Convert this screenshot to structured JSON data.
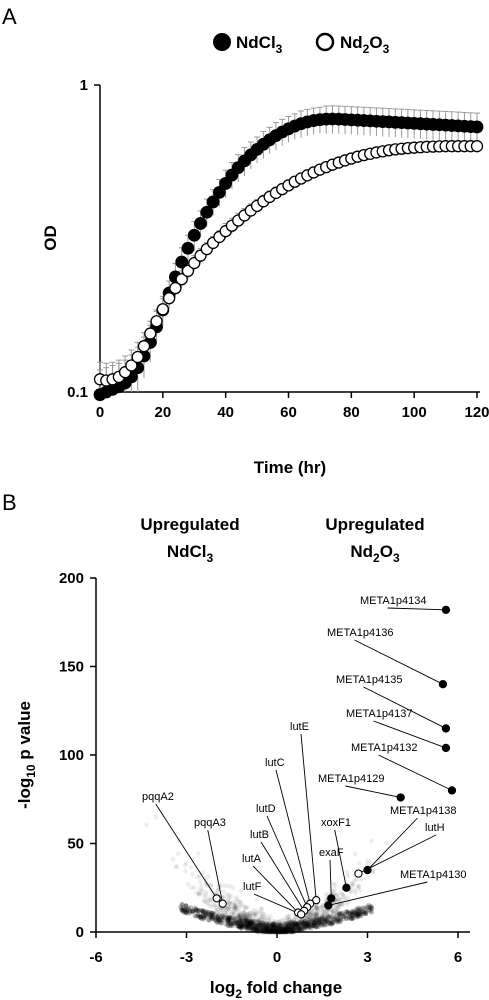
{
  "chart_data": [
    {
      "panel": "A",
      "type": "scatter",
      "xlabel": "Time (hr)",
      "ylabel": "OD",
      "xlim": [
        0,
        120
      ],
      "ylim": [
        0.1,
        1
      ],
      "yscale": "log",
      "x_ticks": [
        "0",
        "20",
        "40",
        "60",
        "80",
        "100",
        "120"
      ],
      "y_ticks": [
        "1",
        "0.1"
      ],
      "legend_position": "top",
      "series": [
        {
          "legend_main": "NdCl",
          "legend_sub": "3",
          "marker": "filled-circle",
          "color": "#000000",
          "error_bar_color": "#999999",
          "x": [
            0,
            2,
            4,
            6,
            8,
            10,
            12,
            14,
            16,
            18,
            20,
            22,
            24,
            26,
            28,
            30,
            32,
            34,
            36,
            38,
            40,
            42,
            44,
            46,
            48,
            50,
            52,
            54,
            56,
            58,
            60,
            62,
            64,
            66,
            68,
            70,
            72,
            74,
            76,
            78,
            80,
            82,
            84,
            86,
            88,
            90,
            92,
            94,
            96,
            98,
            100,
            102,
            104,
            106,
            108,
            110,
            112,
            114,
            116,
            118,
            120
          ],
          "y": [
            0.098,
            0.1,
            0.102,
            0.104,
            0.107,
            0.112,
            0.12,
            0.131,
            0.145,
            0.163,
            0.185,
            0.21,
            0.237,
            0.265,
            0.294,
            0.324,
            0.354,
            0.385,
            0.416,
            0.447,
            0.478,
            0.509,
            0.538,
            0.566,
            0.592,
            0.617,
            0.641,
            0.663,
            0.684,
            0.703,
            0.72,
            0.735,
            0.748,
            0.758,
            0.766,
            0.771,
            0.774,
            0.775,
            0.774,
            0.772,
            0.77,
            0.768,
            0.766,
            0.764,
            0.762,
            0.76,
            0.758,
            0.756,
            0.754,
            0.752,
            0.75,
            0.748,
            0.746,
            0.744,
            0.742,
            0.74,
            0.738,
            0.736,
            0.734,
            0.732,
            0.73
          ],
          "error": [
            0.02,
            0.02,
            0.02,
            0.02,
            0.02,
            0.02,
            0.02,
            0.02,
            0.02,
            0.02,
            0.02,
            0.02,
            0.025,
            0.03,
            0.03,
            0.035,
            0.035,
            0.04,
            0.04,
            0.045,
            0.05,
            0.05,
            0.055,
            0.06,
            0.06,
            0.06,
            0.065,
            0.065,
            0.07,
            0.07,
            0.07,
            0.07,
            0.075,
            0.075,
            0.075,
            0.075,
            0.08,
            0.08,
            0.08,
            0.08,
            0.08,
            0.08,
            0.08,
            0.08,
            0.08,
            0.08,
            0.08,
            0.08,
            0.08,
            0.08,
            0.08,
            0.08,
            0.08,
            0.08,
            0.08,
            0.08,
            0.08,
            0.08,
            0.08,
            0.08,
            0.08
          ]
        },
        {
          "legend_main": "Nd",
          "legend_sub1": "2",
          "legend_main2": "O",
          "legend_sub2": "3",
          "marker": "open-circle",
          "color": "#000000",
          "error_bar_color": "#999999",
          "x": [
            0,
            2,
            4,
            6,
            8,
            10,
            12,
            14,
            16,
            18,
            20,
            22,
            24,
            26,
            28,
            30,
            32,
            34,
            36,
            38,
            40,
            42,
            44,
            46,
            48,
            50,
            52,
            54,
            56,
            58,
            60,
            62,
            64,
            66,
            68,
            70,
            72,
            74,
            76,
            78,
            80,
            82,
            84,
            86,
            88,
            90,
            92,
            94,
            96,
            98,
            100,
            102,
            104,
            106,
            108,
            110,
            112,
            114,
            116,
            118,
            120
          ],
          "y": [
            0.11,
            0.109,
            0.11,
            0.112,
            0.116,
            0.122,
            0.13,
            0.141,
            0.155,
            0.17,
            0.186,
            0.202,
            0.218,
            0.233,
            0.248,
            0.263,
            0.278,
            0.292,
            0.306,
            0.32,
            0.334,
            0.348,
            0.362,
            0.376,
            0.39,
            0.404,
            0.418,
            0.432,
            0.445,
            0.458,
            0.471,
            0.484,
            0.496,
            0.508,
            0.519,
            0.53,
            0.54,
            0.55,
            0.559,
            0.568,
            0.576,
            0.584,
            0.591,
            0.597,
            0.603,
            0.608,
            0.613,
            0.617,
            0.62,
            0.623,
            0.625,
            0.627,
            0.629,
            0.63,
            0.631,
            0.632,
            0.632,
            0.632,
            0.632,
            0.632,
            0.632
          ],
          "error": [
            0.015,
            0.015,
            0.015,
            0.015,
            0.015,
            0.015,
            0.015,
            0.015,
            0.015,
            0.015,
            0.015,
            0.015,
            0.015,
            0.015,
            0.015,
            0.015,
            0.015,
            0.015,
            0.015,
            0.015,
            0.02,
            0.02,
            0.02,
            0.02,
            0.02,
            0.02,
            0.02,
            0.02,
            0.02,
            0.02,
            0.02,
            0.02,
            0.02,
            0.02,
            0.02,
            0.02,
            0.02,
            0.02,
            0.02,
            0.02,
            0.02,
            0.02,
            0.02,
            0.02,
            0.02,
            0.02,
            0.02,
            0.02,
            0.02,
            0.02,
            0.02,
            0.02,
            0.02,
            0.02,
            0.02,
            0.02,
            0.02,
            0.02,
            0.02,
            0.02,
            0.02
          ]
        }
      ]
    },
    {
      "panel": "B",
      "type": "scatter",
      "xlabel_prefix": "log",
      "xlabel_sub": "2",
      "xlabel_suffix": " fold change",
      "ylabel_prefix": "-log",
      "ylabel_sub": "10",
      "ylabel_suffix": " p value",
      "xlim": [
        -6,
        6
      ],
      "ylim": [
        0,
        200
      ],
      "x_ticks": [
        "-6",
        "-3",
        "0",
        "3",
        "6"
      ],
      "y_ticks": [
        "200",
        "150",
        "100",
        "50",
        "0"
      ],
      "annotations": {
        "left_line1": "Upregulated",
        "left_line2_main": "NdCl",
        "left_line2_sub": "3",
        "right_line1": "Upregulated",
        "right_line2_main": "Nd",
        "right_line2_sub1": "2",
        "right_line2_main2": "O",
        "right_line2_sub2": "3"
      },
      "background_cloud": "many grey points, dense near log2FC 0 with low -log10 p",
      "labeled_points": [
        {
          "label": "META1p4134",
          "x": 5.6,
          "y": 182,
          "marker": "filled"
        },
        {
          "label": "META1p4136",
          "x": 5.5,
          "y": 140,
          "marker": "filled"
        },
        {
          "label": "META1p4135",
          "x": 5.6,
          "y": 115,
          "marker": "filled"
        },
        {
          "label": "META1p4137",
          "x": 5.6,
          "y": 104,
          "marker": "filled"
        },
        {
          "label": "META1p4132",
          "x": 5.8,
          "y": 80,
          "marker": "filled"
        },
        {
          "label": "META1p4129",
          "x": 4.1,
          "y": 76,
          "marker": "filled"
        },
        {
          "label": "META1p4138",
          "x": 3.0,
          "y": 35,
          "marker": "filled"
        },
        {
          "label": "lutH",
          "x": 2.7,
          "y": 33,
          "marker": "open"
        },
        {
          "label": "META1p4130",
          "x": 1.7,
          "y": 15,
          "marker": "filled"
        },
        {
          "label": "xoxF1",
          "x": 2.3,
          "y": 25,
          "marker": "filled"
        },
        {
          "label": "exaF",
          "x": 1.8,
          "y": 19,
          "marker": "filled"
        },
        {
          "label": "lutE",
          "x": 1.3,
          "y": 18,
          "marker": "open"
        },
        {
          "label": "lutC",
          "x": 1.1,
          "y": 16,
          "marker": "open"
        },
        {
          "label": "lutD",
          "x": 1.0,
          "y": 14,
          "marker": "open"
        },
        {
          "label": "lutB",
          "x": 0.9,
          "y": 12,
          "marker": "open"
        },
        {
          "label": "lutA",
          "x": 0.7,
          "y": 11,
          "marker": "open"
        },
        {
          "label": "lutF",
          "x": 0.8,
          "y": 10,
          "marker": "open"
        },
        {
          "label": "pqqA2",
          "x": -2.0,
          "y": 19,
          "marker": "open"
        },
        {
          "label": "pqqA3",
          "x": -1.8,
          "y": 16,
          "marker": "open"
        }
      ]
    }
  ]
}
